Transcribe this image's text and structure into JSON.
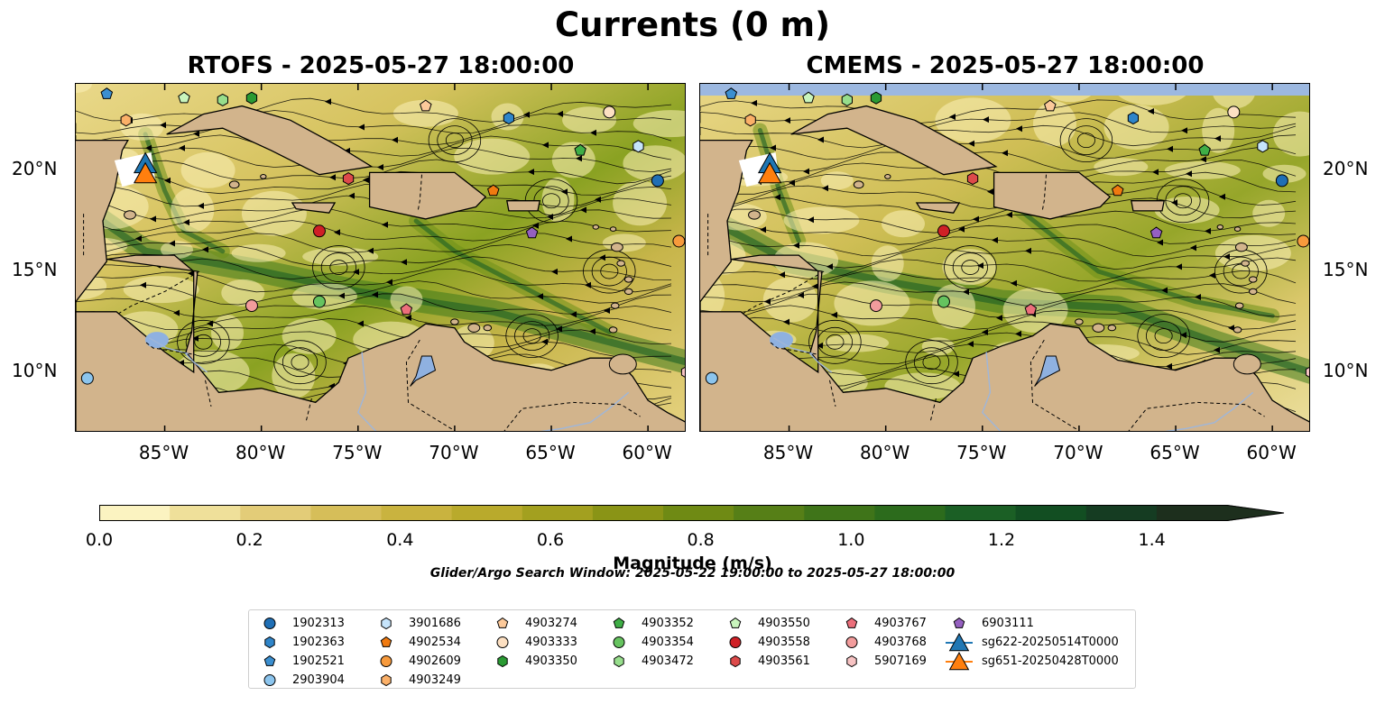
{
  "figure": {
    "suptitle": "Currents (0 m)",
    "colorbar_label": "Magnitude (m/s)",
    "search_window": "Glider/Argo Search Window: 2025-05-22 19:00:00 to 2025-05-27 18:00:00"
  },
  "panels": [
    {
      "id": "left",
      "title": "RTOFS - 2025-05-27 18:00:00"
    },
    {
      "id": "right",
      "title": "CMEMS - 2025-05-27 18:00:00"
    }
  ],
  "axes": {
    "lon_ticks": [
      {
        "value": -85,
        "label": "85°W"
      },
      {
        "value": -80,
        "label": "80°W"
      },
      {
        "value": -75,
        "label": "75°W"
      },
      {
        "value": -70,
        "label": "70°W"
      },
      {
        "value": -65,
        "label": "65°W"
      },
      {
        "value": -60,
        "label": "60°W"
      }
    ],
    "lat_ticks": [
      {
        "value": 20,
        "label": "20°N"
      },
      {
        "value": 15,
        "label": "15°N"
      },
      {
        "value": 10,
        "label": "10°N"
      }
    ],
    "lon_range": [
      -89.6,
      -58.0
    ],
    "lat_range": [
      7.0,
      24.3
    ]
  },
  "colorbar": {
    "ticks": [
      "0.0",
      "0.2",
      "0.4",
      "0.6",
      "0.8",
      "1.0",
      "1.2",
      "1.4"
    ],
    "range": [
      0,
      1.5
    ],
    "extend": "max",
    "colors": [
      "#fbf3c1",
      "#efe09a",
      "#e3cc78",
      "#d6be59",
      "#c9b33f",
      "#b9aa2c",
      "#a3a01f",
      "#8a9416",
      "#6f8a14",
      "#567f17",
      "#3f7419",
      "#2c6b1c",
      "#1b5f25",
      "#124e22",
      "#153c22",
      "#1d2f1d"
    ]
  },
  "colors": {
    "land": "#d2b48c",
    "water": "#8fb1e0",
    "ocean_low": "#fbf3c1",
    "ocean_high": "#1b5f25",
    "streamline": "#000000"
  },
  "legend": {
    "columns": [
      [
        {
          "label": "1902313",
          "marker": "circle",
          "color": "#1f6fb5"
        },
        {
          "label": "1902363",
          "marker": "hexagon",
          "color": "#2f85c9"
        },
        {
          "label": "1902521",
          "marker": "pentagon",
          "color": "#3b8fd0"
        },
        {
          "label": "2903904",
          "marker": "circle",
          "color": "#8cc5ee"
        }
      ],
      [
        {
          "label": "3901686",
          "marker": "hexagon",
          "color": "#c6e4fb"
        },
        {
          "label": "4902534",
          "marker": "pentagon",
          "color": "#f07a10"
        },
        {
          "label": "4902609",
          "marker": "circle",
          "color": "#f79a3c"
        },
        {
          "label": "4903249",
          "marker": "hexagon",
          "color": "#fbb068"
        }
      ],
      [
        {
          "label": "4903274",
          "marker": "pentagon",
          "color": "#fcc99a"
        },
        {
          "label": "4903333",
          "marker": "circle",
          "color": "#fde0c2"
        },
        {
          "label": "4903350",
          "marker": "hexagon",
          "color": "#2a9a33"
        }
      ],
      [
        {
          "label": "4903352",
          "marker": "pentagon",
          "color": "#3fae46"
        },
        {
          "label": "4903354",
          "marker": "circle",
          "color": "#66c35f"
        },
        {
          "label": "4903472",
          "marker": "hexagon",
          "color": "#97de8c"
        }
      ],
      [
        {
          "label": "4903550",
          "marker": "pentagon",
          "color": "#c9f5bd"
        },
        {
          "label": "4903558",
          "marker": "circle",
          "color": "#cf2026"
        },
        {
          "label": "4903561",
          "marker": "hexagon",
          "color": "#dd4a4a"
        }
      ],
      [
        {
          "label": "4903767",
          "marker": "pentagon",
          "color": "#ec6f7b"
        },
        {
          "label": "4903768",
          "marker": "circle",
          "color": "#f29c9c"
        },
        {
          "label": "5907169",
          "marker": "hexagon",
          "color": "#f7c3c3"
        }
      ],
      [
        {
          "label": "6903111",
          "marker": "pentagon",
          "color": "#9560c0"
        },
        {
          "label": "sg622-20250514T0000",
          "marker": "triangle",
          "color": "#1f77b4"
        },
        {
          "label": "sg651-20250428T0000",
          "marker": "triangle",
          "color": "#ff7f0e"
        }
      ]
    ]
  },
  "floats": [
    {
      "id": "1902313",
      "lon": -59.5,
      "lat": 19.5
    },
    {
      "id": "1902363",
      "lon": -67.2,
      "lat": 22.6
    },
    {
      "id": "1902521",
      "lon": -88.0,
      "lat": 23.8
    },
    {
      "id": "2903904",
      "lon": -89.0,
      "lat": 9.7
    },
    {
      "id": "3901686",
      "lon": -60.5,
      "lat": 21.2
    },
    {
      "id": "4902534",
      "lon": -68.0,
      "lat": 19.0
    },
    {
      "id": "4902609",
      "lon": -58.4,
      "lat": 16.5
    },
    {
      "id": "4903249",
      "lon": -87.0,
      "lat": 22.5
    },
    {
      "id": "4903274",
      "lon": -71.5,
      "lat": 23.2
    },
    {
      "id": "4903333",
      "lon": -62.0,
      "lat": 22.9
    },
    {
      "id": "4903350",
      "lon": -80.5,
      "lat": 23.6
    },
    {
      "id": "4903352",
      "lon": -63.5,
      "lat": 21.0
    },
    {
      "id": "4903354",
      "lon": -77.0,
      "lat": 13.5
    },
    {
      "id": "4903472",
      "lon": -82.0,
      "lat": 23.5
    },
    {
      "id": "4903550",
      "lon": -84.0,
      "lat": 23.6
    },
    {
      "id": "4903558",
      "lon": -77.0,
      "lat": 17.0
    },
    {
      "id": "4903561",
      "lon": -75.5,
      "lat": 19.6
    },
    {
      "id": "4903767",
      "lon": -72.5,
      "lat": 13.1
    },
    {
      "id": "4903768",
      "lon": -80.5,
      "lat": 13.3
    },
    {
      "id": "5907169",
      "lon": -58.0,
      "lat": 10.0
    },
    {
      "id": "6903111",
      "lon": -66.0,
      "lat": 16.9
    }
  ],
  "gliders": [
    {
      "id": "sg622-20250514T0000",
      "lon": -86.0,
      "lat": 20.3
    },
    {
      "id": "sg651-20250428T0000",
      "lon": -86.0,
      "lat": 19.8
    }
  ]
}
